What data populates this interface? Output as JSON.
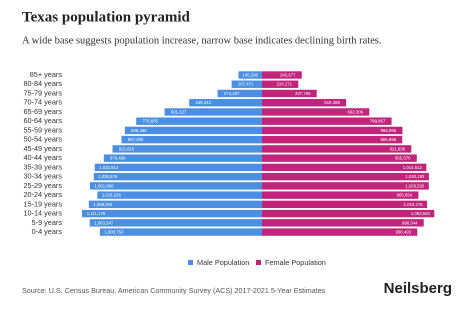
{
  "chart_data": {
    "type": "pyramid",
    "title": "Texas population pyramid",
    "subtitle": "A wide base suggests population increase, narrow base indicates declining birth rates.",
    "categories": [
      "85+ years",
      "80-84 years",
      "75-79 years",
      "70-74 years",
      "65-69 years",
      "60-64 years",
      "55-59 years",
      "50-54 years",
      "45-49 years",
      "40-44 years",
      "35-39 years",
      "30-34 years",
      "25-29 years",
      "20-24 years",
      "15-19 years",
      "10-14 years",
      "5-9 years",
      "0-4 years"
    ],
    "series": [
      {
        "name": "Male Population",
        "color": "#4a8fe3",
        "values": [
          145290,
          187471,
          274187,
          449443,
          601327,
          776605,
          846495,
          867290,
          922810,
          976499,
          1032814,
          1038576,
          1061896,
          1016226,
          1068934,
          1111176,
          1063347,
          1000753
        ],
        "value_labels": [
          "145,290",
          "187,471",
          "274,187",
          "449,443",
          "601,327",
          "776,605",
          "846,495",
          "867,290",
          "922,810",
          "976,499",
          "1,032,814",
          "1,038,576",
          "1,061,896",
          "1,016,226",
          "1,068,934",
          "1,111,176",
          "1,063,347",
          "1,000,753"
        ]
      },
      {
        "name": "Female Population",
        "color": "#c2237b",
        "values": [
          245677,
          224171,
          337785,
          519388,
          662306,
          799867,
          866995,
          865898,
          921896,
          955576,
          1014612,
          1030192,
          1029530,
          965654,
          1019276,
          1063663,
          998344,
          958493
        ],
        "value_labels": [
          "245,677",
          "224,171",
          "337,785",
          "519,388",
          "662,306",
          "799,867",
          "866,995",
          "865,898",
          "921,896",
          "955,576",
          "1,014,612",
          "1,030,192",
          "1,029,530",
          "965,654",
          "1,019,276",
          "1,063,663",
          "998,344",
          "958,493"
        ]
      }
    ],
    "source": "Source: U.S. Census Bureau, American Community Survey (ACS) 2017-2021 5-Year Estimates",
    "brand": "Neilsberg"
  }
}
